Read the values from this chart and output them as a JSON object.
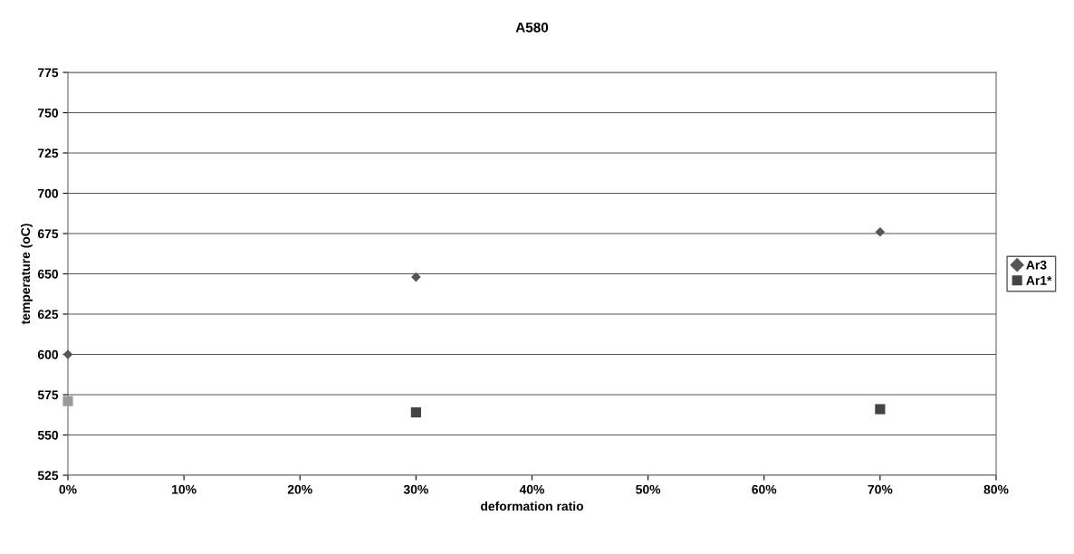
{
  "chart_data": {
    "type": "scatter",
    "title": "A580",
    "xlabel": "deformation ratio",
    "ylabel": "temperature (oC)",
    "x": [
      0,
      30,
      70
    ],
    "series": [
      {
        "name": "Ar3",
        "color": "#555555",
        "marker": "diamond",
        "values": [
          600,
          648,
          676
        ]
      },
      {
        "name": "Ar1*",
        "color": "#444444",
        "colors": [
          "#999999",
          "#444444",
          "#444444"
        ],
        "marker": "square",
        "values": [
          571,
          564,
          566
        ]
      }
    ],
    "xlim": [
      0,
      80
    ],
    "xticks": [
      {
        "value": 0,
        "label": "0%"
      },
      {
        "value": 10,
        "label": "10%"
      },
      {
        "value": 20,
        "label": "20%"
      },
      {
        "value": 30,
        "label": "30%"
      },
      {
        "value": 40,
        "label": "40%"
      },
      {
        "value": 50,
        "label": "50%"
      },
      {
        "value": 60,
        "label": "60%"
      },
      {
        "value": 70,
        "label": "70%"
      },
      {
        "value": 80,
        "label": "80%"
      }
    ],
    "ylim": [
      525,
      775
    ],
    "yticks": [
      525,
      550,
      575,
      600,
      625,
      650,
      675,
      700,
      725,
      750,
      775
    ],
    "grid": "y",
    "legend": "right"
  }
}
